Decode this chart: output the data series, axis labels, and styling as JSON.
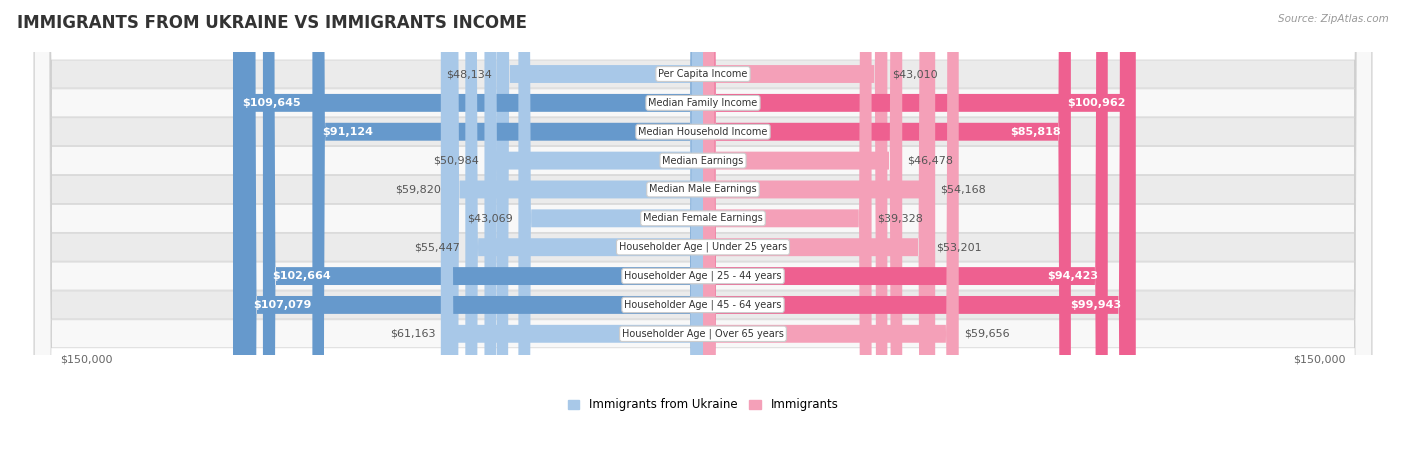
{
  "title": "IMMIGRANTS FROM UKRAINE VS IMMIGRANTS INCOME",
  "source": "Source: ZipAtlas.com",
  "categories": [
    "Per Capita Income",
    "Median Family Income",
    "Median Household Income",
    "Median Earnings",
    "Median Male Earnings",
    "Median Female Earnings",
    "Householder Age | Under 25 years",
    "Householder Age | 25 - 44 years",
    "Householder Age | 45 - 64 years",
    "Householder Age | Over 65 years"
  ],
  "ukraine_values": [
    48134,
    109645,
    91124,
    50984,
    59820,
    43069,
    55447,
    102664,
    107079,
    61163
  ],
  "immigrants_values": [
    43010,
    100962,
    85818,
    46478,
    54168,
    39328,
    53201,
    94423,
    99943,
    59656
  ],
  "ukraine_labels": [
    "$48,134",
    "$109,645",
    "$91,124",
    "$50,984",
    "$59,820",
    "$43,069",
    "$55,447",
    "$102,664",
    "$107,079",
    "$61,163"
  ],
  "immigrants_labels": [
    "$43,010",
    "$100,962",
    "$85,818",
    "$46,478",
    "$54,168",
    "$39,328",
    "$53,201",
    "$94,423",
    "$99,943",
    "$59,656"
  ],
  "ukraine_color_light": "#a8c8e8",
  "ukraine_color_dark": "#6699cc",
  "immigrants_color_light": "#f4a0b8",
  "immigrants_color_dark": "#ee6090",
  "inside_threshold": 70000,
  "max_value": 150000,
  "row_bg_even": "#ebebeb",
  "row_bg_odd": "#f8f8f8",
  "title_fontsize": 12,
  "label_fontsize": 8,
  "cat_fontsize": 7,
  "axis_label": "$150,000",
  "legend_ukraine": "Immigrants from Ukraine",
  "legend_immigrants": "Immigrants"
}
